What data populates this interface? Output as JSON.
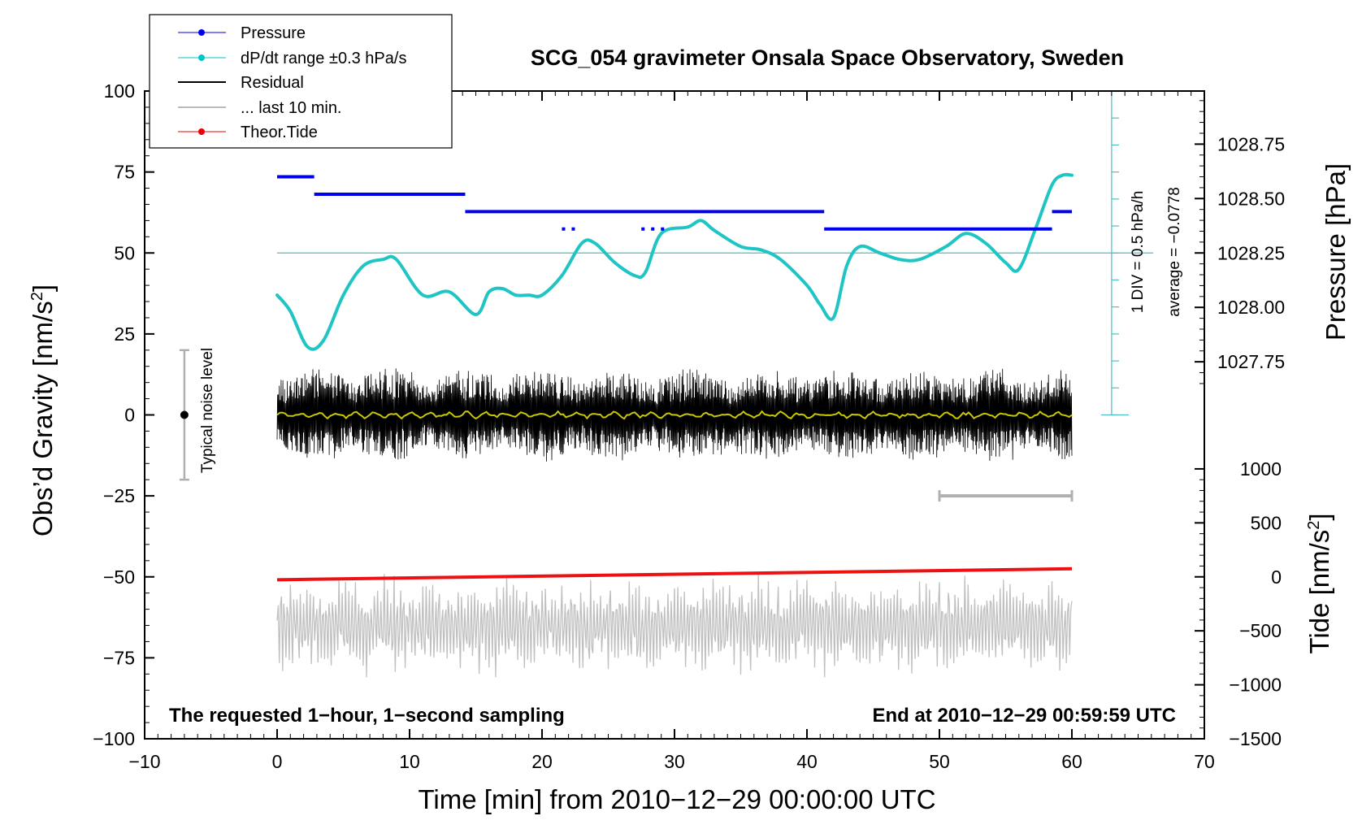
{
  "chart_data": {
    "type": "line",
    "title": "SCG_054 gravimeter Onsala Space Observatory, Sweden",
    "xlabel": "Time [min] from 2010−12−29 00:00:00 UTC",
    "ylabel_left": "Obs’d Gravity [nm/s",
    "ylabel_left_sup": "2",
    "ylabel_left_end": "]",
    "ylabel_right_pressure": "Pressure [hPa]",
    "ylabel_right_tide": "Tide [nm/s",
    "ylabel_right_tide_sup": "2",
    "ylabel_right_tide_end": "]",
    "xlim": [
      -10,
      70
    ],
    "ylim": [
      -100,
      100
    ],
    "x_ticks": [
      -10,
      0,
      10,
      20,
      30,
      40,
      50,
      60,
      70
    ],
    "x_tick_labels": [
      "−10",
      "0",
      "10",
      "20",
      "30",
      "40",
      "50",
      "60",
      "70"
    ],
    "y_ticks": [
      -100,
      -75,
      -50,
      -25,
      0,
      25,
      50,
      75,
      100
    ],
    "y_tick_labels": [
      "−100",
      "−75",
      "−50",
      "−25",
      "0",
      "25",
      "50",
      "75",
      "100"
    ],
    "pressure_ticks": [
      1027.75,
      1028.0,
      1028.25,
      1028.5,
      1028.75
    ],
    "pressure_tick_labels": [
      "1027.75",
      "1028.00",
      "1028.25",
      "1028.50",
      "1028.75"
    ],
    "pressure_axis_map": {
      "p1": 1028.25,
      "g1": 50,
      "p2": 1028.75,
      "g2": 83.6
    },
    "tide_ticks": [
      1000,
      500,
      0,
      -500,
      -1000,
      -1500
    ],
    "tide_tick_labels": [
      "1000",
      "500",
      "0",
      "−500",
      "−1000",
      "−1500"
    ],
    "tide_axis_map": {
      "t1": 0,
      "g1": -50,
      "t2": -1500,
      "g2": -100
    },
    "legend_position": "top-left, outside above plot",
    "legend": [
      {
        "label": "Pressure",
        "color": "#0000ee",
        "marker": "dot"
      },
      {
        "label": "dP/dt range ±0.3 hPa/s",
        "color": "#00c8c8",
        "marker": "dot"
      },
      {
        "label": "Residual",
        "color": "#000000",
        "marker": "line"
      },
      {
        "label": "... last 10 min.",
        "color": "#bbbbbb",
        "marker": "line"
      },
      {
        "label": "Theor.Tide",
        "color": "#ee0000",
        "marker": "dot"
      }
    ],
    "colors": {
      "pressure": "#0000ee",
      "dpdt": "#1fc4c4",
      "reference": "#4fbdbd",
      "residual": "#000000",
      "residual_smooth": "#c8c800",
      "last10": "#c0c0c0",
      "tide": "#ee1111",
      "noise_bar": "#b0b0b0"
    },
    "series": [
      {
        "name": "Pressure",
        "unit": "hPa",
        "segments": [
          {
            "x": [
              0,
              2.8
            ],
            "value": 1028.6
          },
          {
            "x": [
              2.8,
              14.2
            ],
            "value": 1028.52
          },
          {
            "x": [
              14.2,
              41.3
            ],
            "value": 1028.44
          },
          {
            "x": [
              21.5,
              22.5
            ],
            "value": 1028.36,
            "dotted": true
          },
          {
            "x": [
              27.5,
              29.5
            ],
            "value": 1028.36,
            "dotted": true
          },
          {
            "x": [
              41.3,
              58.5
            ],
            "value": 1028.36
          },
          {
            "x": [
              58.5,
              60
            ],
            "value": 1028.44
          }
        ]
      },
      {
        "name": "dP/dt range ±0.3 hPa/s",
        "unit": "nm/s2 (plot units)",
        "x": [
          0,
          1,
          2.3,
          3.5,
          5,
          6.5,
          8,
          9,
          11,
          13,
          15,
          16,
          17,
          18,
          19,
          20,
          21.5,
          23,
          24,
          25.5,
          27,
          27.8,
          29,
          31,
          32,
          33,
          35,
          36.5,
          38,
          40,
          41,
          42,
          43,
          44,
          45.5,
          47,
          48.5,
          50.5,
          52,
          53.5,
          55,
          56,
          57.3,
          58.5,
          59.3,
          60
        ],
        "values": [
          37,
          32,
          21,
          23,
          37,
          46,
          48,
          48,
          37,
          38,
          31,
          38,
          39,
          37,
          37,
          37,
          43,
          53,
          53,
          47,
          43,
          44,
          56,
          58,
          60,
          57,
          52,
          51,
          48,
          40,
          34,
          30,
          46,
          52,
          50,
          48,
          48,
          52,
          56,
          53,
          47,
          45,
          58,
          71,
          74,
          74
        ]
      },
      {
        "name": "Residual",
        "unit": "nm/s2",
        "x_range": [
          0,
          60
        ],
        "center": 0,
        "amplitude_range": [
          -20,
          18
        ]
      },
      {
        "name": "... last 10 min.",
        "unit": "nm/s2",
        "x_range": [
          0,
          60
        ],
        "center": -65,
        "amplitude_range": [
          -81,
          -49
        ]
      },
      {
        "name": "Theor.Tide",
        "unit": "nm/s2",
        "x": [
          0,
          60
        ],
        "values": [
          -50.9,
          -47.5
        ]
      }
    ],
    "reference_line": {
      "y": 50
    },
    "noise_bar": {
      "x": -7,
      "y": [
        -20,
        20
      ],
      "center": 0
    },
    "last10_bar": {
      "x": [
        50,
        60
      ],
      "y": -25
    },
    "annotations": {
      "noise_label": "Typical noise level",
      "div_label": "1 DIV = 0.5 hPa/h",
      "average_label": "average = −0.0778",
      "bottom_left": "The requested 1−hour, 1−second sampling",
      "bottom_right": "End at 2010−12−29 00:59:59 UTC"
    }
  }
}
